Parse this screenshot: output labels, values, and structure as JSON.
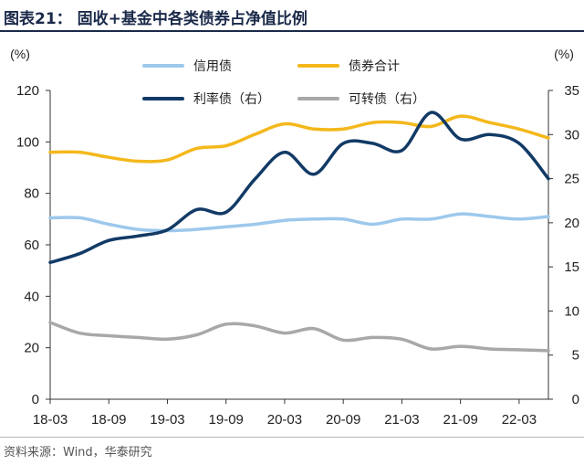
{
  "title": "图表21： 固收+基金中各类债券占净值比例",
  "source": "资料来源：Wind，华泰研究",
  "chart_data": {
    "type": "line",
    "x": [
      "18-03",
      "18-06",
      "18-09",
      "18-12",
      "19-03",
      "19-06",
      "19-09",
      "19-12",
      "20-03",
      "20-06",
      "20-09",
      "20-12",
      "21-03",
      "21-06",
      "21-09",
      "21-12",
      "22-03",
      "22-06"
    ],
    "xticks": [
      "18-03",
      "18-09",
      "19-03",
      "19-09",
      "20-03",
      "20-09",
      "21-03",
      "21-09",
      "22-03"
    ],
    "y_left": {
      "unit": "(%)",
      "ylim": [
        0,
        120
      ],
      "ticks": [
        0,
        20,
        40,
        60,
        80,
        100,
        120
      ]
    },
    "y_right": {
      "unit": "(%)",
      "ylim": [
        0,
        35
      ],
      "ticks": [
        0,
        5,
        10,
        15,
        20,
        25,
        30,
        35
      ]
    },
    "legend_position": "top",
    "grid": false,
    "series": [
      {
        "name": "信用债",
        "axis": "left",
        "color": "#9dc8ec",
        "values": [
          70.5,
          70.5,
          68,
          66,
          65.5,
          66,
          67,
          68,
          69.5,
          70,
          70,
          68,
          70,
          70,
          72,
          71,
          70,
          71
        ]
      },
      {
        "name": "债券合计",
        "axis": "left",
        "color": "#f4b81c",
        "values": [
          96,
          96,
          94,
          92.5,
          93,
          97.5,
          98.5,
          103,
          107,
          105,
          105,
          107.5,
          107.5,
          106,
          110,
          107.5,
          105,
          101.5
        ]
      },
      {
        "name": "利率债（右）",
        "axis": "right",
        "color": "#123a66",
        "values": [
          15.5,
          16.5,
          18,
          18.5,
          19.2,
          21.5,
          21.2,
          25,
          28,
          25.5,
          29,
          29,
          28.2,
          32.5,
          29.5,
          30,
          29,
          25
        ]
      },
      {
        "name": "可转债（右）",
        "axis": "right",
        "color": "#a8a8a8",
        "values": [
          8.7,
          7.5,
          7.2,
          7,
          6.8,
          7.3,
          8.5,
          8.3,
          7.5,
          8,
          6.7,
          7,
          6.8,
          5.7,
          6,
          5.7,
          5.6,
          5.5
        ]
      }
    ]
  }
}
